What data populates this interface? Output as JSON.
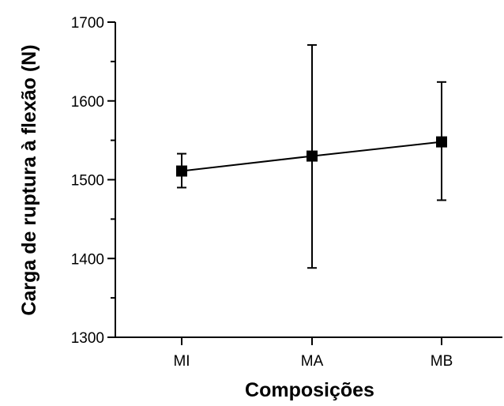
{
  "chart_data": {
    "type": "line",
    "title": "",
    "xlabel": "Composições",
    "ylabel": "Carga de ruptura à flexão (N)",
    "categories": [
      "MI",
      "MA",
      "MB"
    ],
    "series": [
      {
        "values": [
          1511,
          1530,
          1548
        ],
        "error_low": [
          1490,
          1388,
          1474
        ],
        "error_high": [
          1533,
          1671,
          1624
        ],
        "color": "#000000",
        "marker": "square"
      }
    ],
    "ylim": [
      1300,
      1700
    ],
    "yticks": [
      1300,
      1400,
      1500,
      1600,
      1700
    ],
    "y_tick_labels": [
      "1300",
      "1400",
      "1500",
      "1600",
      "1700"
    ],
    "y_minor_step": 50,
    "grid": false
  }
}
